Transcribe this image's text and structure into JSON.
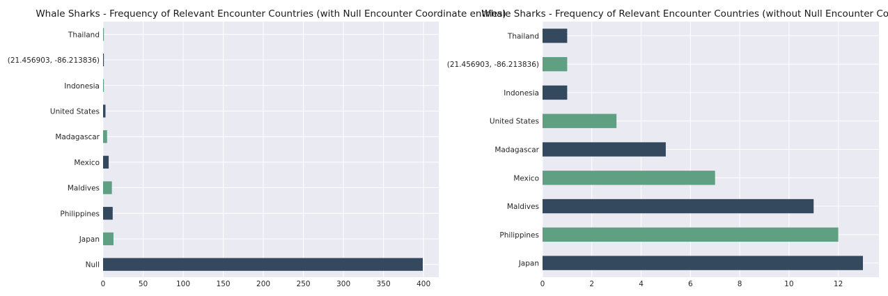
{
  "colors": {
    "bar_dark": "#34495e",
    "bar_green": "#5fa083",
    "plot_bg": "#eaeaf2",
    "grid": "#ffffff"
  },
  "chart_data": [
    {
      "type": "bar",
      "orientation": "horizontal",
      "title": "Whale Sharks - Frequency of Relevant Encounter Countries (with Null Encounter Coordinate entries)",
      "categories": [
        "Null",
        "Japan",
        "Philippines",
        "Maldives",
        "Mexico",
        "Madagascar",
        "United States",
        "Indonesia",
        "(21.456903, -86.213836)",
        "Thailand"
      ],
      "values": [
        399,
        13,
        12,
        11,
        7,
        5,
        3,
        1,
        1,
        1
      ],
      "xticks": [
        0,
        50,
        100,
        150,
        200,
        250,
        300,
        350,
        400
      ],
      "xlim": [
        0,
        419
      ],
      "grid": true,
      "legend": "none"
    },
    {
      "type": "bar",
      "orientation": "horizontal",
      "title": "Whale Sharks - Frequency of Relevant Encounter Countries (without Null Encounter Coordinate entries)",
      "categories": [
        "Japan",
        "Philippines",
        "Maldives",
        "Mexico",
        "Madagascar",
        "United States",
        "Indonesia",
        "(21.456903, -86.213836)",
        "Thailand"
      ],
      "values": [
        13,
        12,
        11,
        7,
        5,
        3,
        1,
        1,
        1
      ],
      "xticks": [
        0,
        2,
        4,
        6,
        8,
        10,
        12
      ],
      "xlim": [
        0,
        13.65
      ],
      "grid": true,
      "legend": "none"
    }
  ]
}
